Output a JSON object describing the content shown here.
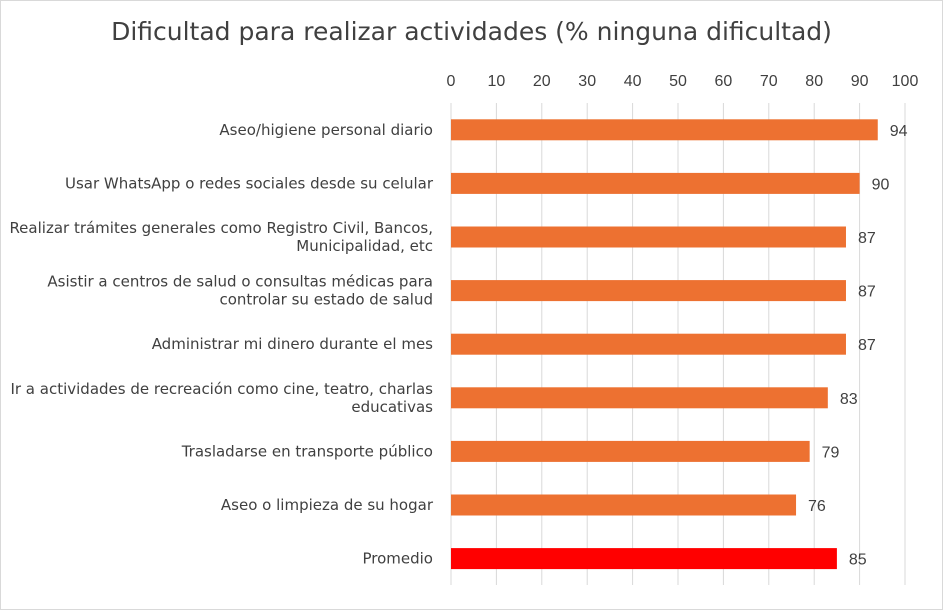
{
  "chart_data": {
    "type": "bar",
    "orientation": "horizontal",
    "title": "Dificultad para realizar actividades (% ninguna dificultad)",
    "xlim": [
      0,
      100
    ],
    "x_ticks": [
      0,
      10,
      20,
      30,
      40,
      50,
      60,
      70,
      80,
      90,
      100
    ],
    "x_axis_position": "top",
    "grid": true,
    "legend": "none",
    "categories": [
      [
        "Aseo/higiene personal diario"
      ],
      [
        "Usar WhatsApp o redes sociales desde su celular"
      ],
      [
        "Realizar trámites generales como Registro Civil, Bancos,",
        "Municipalidad, etc"
      ],
      [
        "Asistir a centros de salud o consultas médicas para",
        "controlar su estado de salud"
      ],
      [
        "Administrar mi dinero durante el mes"
      ],
      [
        "Ir a actividades de recreación como cine, teatro, charlas",
        "educativas"
      ],
      [
        "Trasladarse en transporte público"
      ],
      [
        "Aseo o limpieza de su hogar"
      ],
      [
        "Promedio"
      ]
    ],
    "values": [
      94,
      90,
      87,
      87,
      87,
      83,
      79,
      76,
      85
    ],
    "colors": [
      "#ED7131",
      "#ED7131",
      "#ED7131",
      "#ED7131",
      "#ED7131",
      "#ED7131",
      "#ED7131",
      "#ED7131",
      "#FF0000"
    ],
    "gridline_color": "#d9d9d9"
  }
}
